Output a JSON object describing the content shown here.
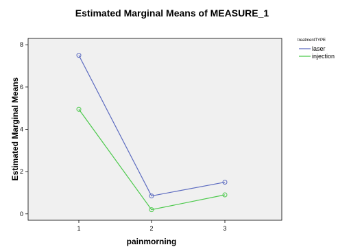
{
  "chart_data": {
    "type": "line",
    "title": "Estimated Marginal Means of MEASURE_1",
    "xlabel": "painmorning",
    "ylabel": "Estimated Marginal Means",
    "categories": [
      "1",
      "2",
      "3"
    ],
    "ylim": [
      -0.3,
      8.3
    ],
    "yticks": [
      0,
      2,
      4,
      6,
      8
    ],
    "grid": false,
    "legend": {
      "title": "treatmentTYPE",
      "position": "right"
    },
    "plot_background": "#f0f0f0",
    "series": [
      {
        "name": "laser",
        "color": "#5c6bc0",
        "values": [
          7.5,
          0.85,
          1.5
        ]
      },
      {
        "name": "injection",
        "color": "#4cc94c",
        "values": [
          4.95,
          0.2,
          0.9
        ]
      }
    ]
  }
}
